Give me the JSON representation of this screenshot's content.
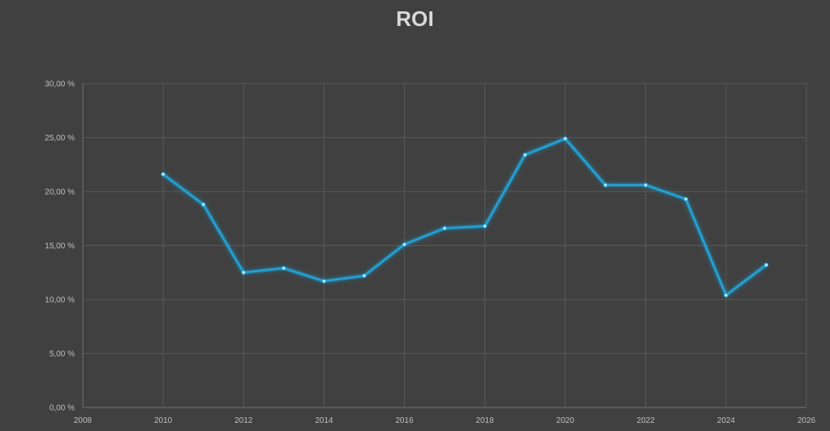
{
  "chart_data": {
    "type": "line",
    "title": "ROI",
    "xlabel": "",
    "ylabel": "",
    "xlim": [
      2008,
      2026
    ],
    "ylim": [
      0,
      30
    ],
    "x_ticks": [
      2008,
      2010,
      2012,
      2014,
      2016,
      2018,
      2020,
      2022,
      2024,
      2026
    ],
    "x_tick_labels": [
      "2008",
      "2010",
      "2012",
      "2014",
      "2016",
      "2018",
      "2020",
      "2022",
      "2024",
      "2026"
    ],
    "y_ticks": [
      0,
      5,
      10,
      15,
      20,
      25,
      30
    ],
    "y_tick_labels": [
      "0,00 %",
      "5,00 %",
      "10,00 %",
      "15,00 %",
      "20,00 %",
      "25,00 %",
      "30,00 %"
    ],
    "grid": true,
    "legend": "none",
    "series": [
      {
        "color": "#1fa8e0",
        "x": [
          2010,
          2011,
          2012,
          2013,
          2014,
          2015,
          2016,
          2017,
          2018,
          2019,
          2020,
          2021,
          2022,
          2023,
          2024,
          2025
        ],
        "values": [
          21.6,
          18.8,
          12.5,
          12.9,
          11.7,
          12.2,
          15.1,
          16.6,
          16.8,
          23.4,
          24.9,
          20.6,
          20.6,
          19.3,
          10.4,
          13.2
        ]
      }
    ]
  },
  "colors": {
    "background": "#404040",
    "grid": "#595959",
    "text": "#bfbfbf",
    "title": "#d9d9d9",
    "line": "#1fa8e0"
  }
}
